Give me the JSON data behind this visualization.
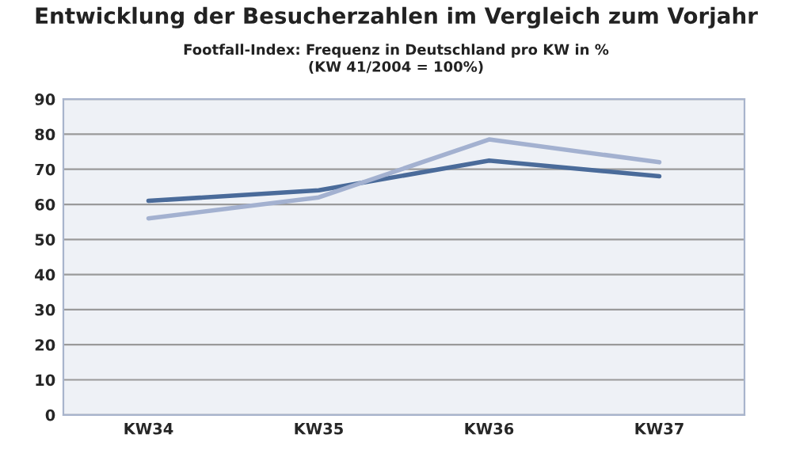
{
  "chart_data": {
    "type": "line",
    "title": "Entwicklung der Besucherzahlen im Vergleich zum Vorjahr",
    "subtitle": "Footfall-Index: Frequenz in Deutschland pro KW in %\n(KW 41/2004 = 100%)",
    "categories": [
      "KW34",
      "KW35",
      "KW36",
      "KW37"
    ],
    "series": [
      {
        "color": "#4a6b9a",
        "values": [
          61,
          64,
          72.5,
          68
        ]
      },
      {
        "color": "#a3b1d0",
        "values": [
          56,
          62,
          78.5,
          72
        ]
      }
    ],
    "ylim": [
      0,
      90
    ],
    "yticks": [
      0,
      10,
      20,
      30,
      40,
      50,
      60,
      70,
      80,
      90
    ],
    "grid": "y",
    "legend": false,
    "marker": "none",
    "line_style": "solid"
  }
}
